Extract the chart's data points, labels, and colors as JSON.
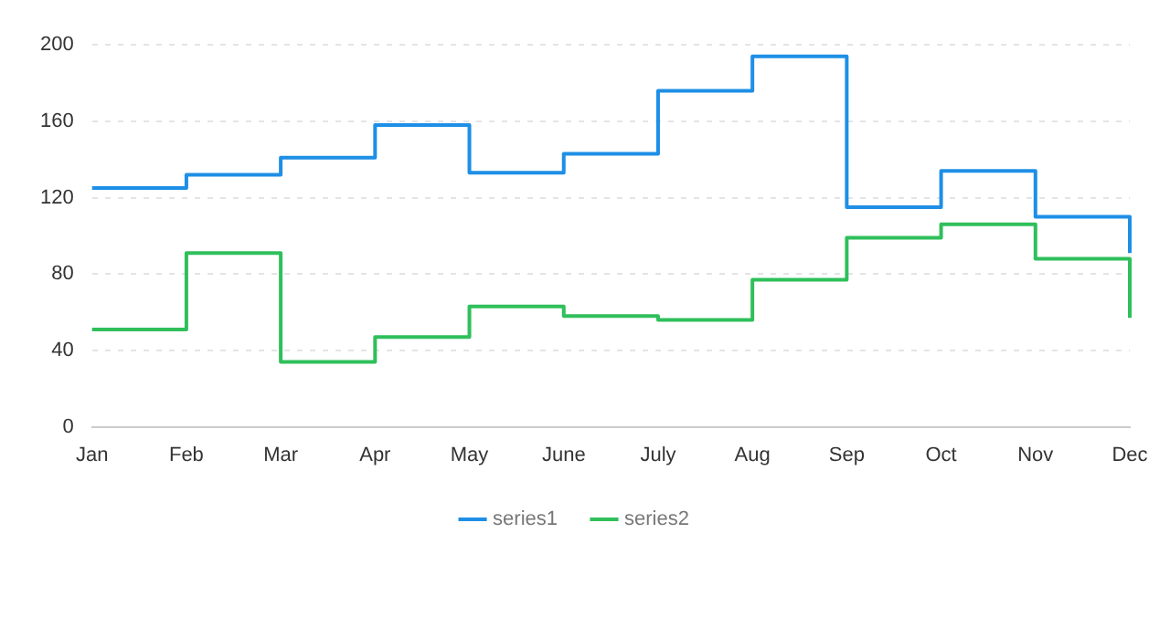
{
  "chart_data": {
    "type": "step",
    "categories": [
      "Jan",
      "Feb",
      "Mar",
      "Apr",
      "May",
      "June",
      "July",
      "Aug",
      "Sep",
      "Oct",
      "Nov",
      "Dec"
    ],
    "series": [
      {
        "name": "series1",
        "color": "#1e8fe6",
        "values": [
          125,
          132,
          141,
          158,
          133,
          143,
          176,
          194,
          115,
          134,
          110,
          91
        ]
      },
      {
        "name": "series2",
        "color": "#2fbf5b",
        "values": [
          51,
          91,
          34,
          47,
          63,
          58,
          56,
          77,
          99,
          106,
          88,
          57
        ]
      }
    ],
    "ylim": [
      0,
      200
    ],
    "yticks": [
      0,
      40,
      80,
      120,
      160,
      200
    ],
    "grid": "y",
    "legend": "bottom",
    "marker": "none",
    "line_style": "solid"
  }
}
